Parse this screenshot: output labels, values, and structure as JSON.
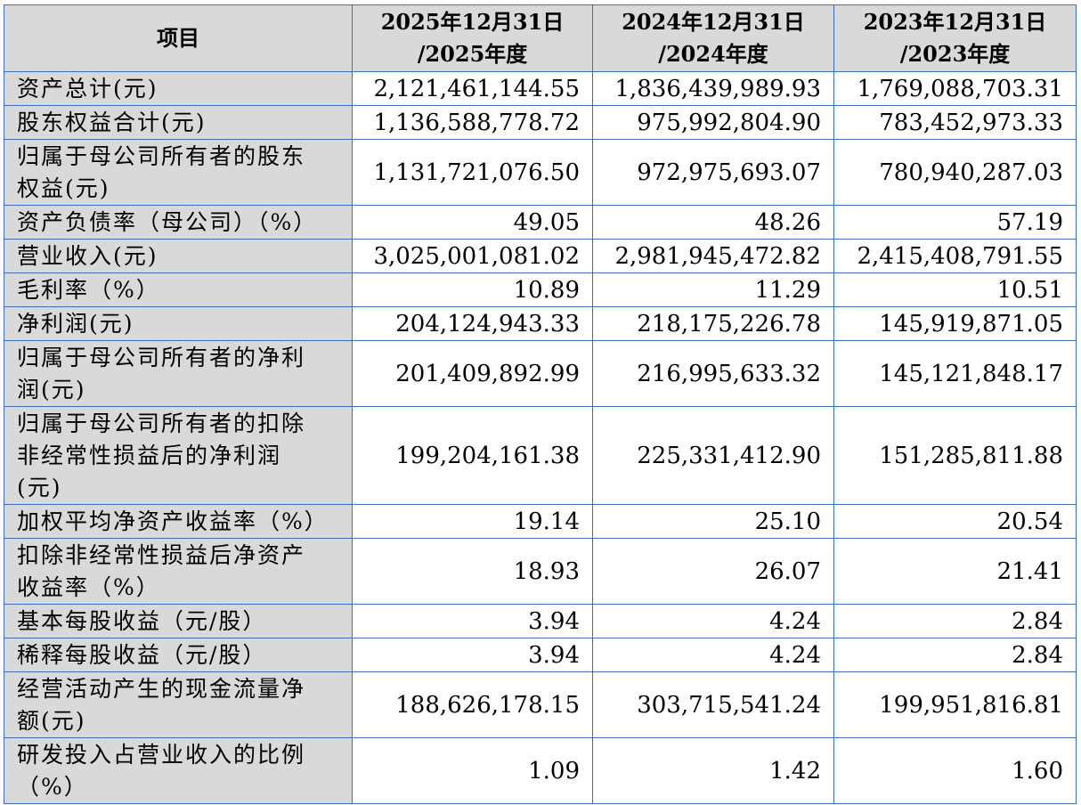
{
  "header": {
    "item_label": "项目",
    "columns": [
      {
        "line1": "2025年12月31日",
        "line2": "/2025年度"
      },
      {
        "line1": "2024年12月31日",
        "line2": "/2024年度"
      },
      {
        "line1": "2023年12月31日",
        "line2": "/2023年度"
      }
    ]
  },
  "rows": [
    {
      "label": [
        "资产总计(元)"
      ],
      "values": [
        "2,121,461,144.55",
        "1,836,439,989.93",
        "1,769,088,703.31"
      ]
    },
    {
      "label": [
        "股东权益合计(元)"
      ],
      "values": [
        "1,136,588,778.72",
        "975,992,804.90",
        "783,452,973.33"
      ]
    },
    {
      "label": [
        "归属于母公司所有者的股东",
        "权益(元)"
      ],
      "values": [
        "1,131,721,076.50",
        "972,975,693.07",
        "780,940,287.03"
      ]
    },
    {
      "label": [
        "资产负债率（母公司）（%）"
      ],
      "values": [
        "49.05",
        "48.26",
        "57.19"
      ]
    },
    {
      "label": [
        "营业收入(元)"
      ],
      "values": [
        "3,025,001,081.02",
        "2,981,945,472.82",
        "2,415,408,791.55"
      ]
    },
    {
      "label": [
        "毛利率（%）"
      ],
      "values": [
        "10.89",
        "11.29",
        "10.51"
      ]
    },
    {
      "label": [
        "净利润(元)"
      ],
      "values": [
        "204,124,943.33",
        "218,175,226.78",
        "145,919,871.05"
      ]
    },
    {
      "label": [
        "归属于母公司所有者的净利",
        "润(元)"
      ],
      "values": [
        "201,409,892.99",
        "216,995,633.32",
        "145,121,848.17"
      ]
    },
    {
      "label": [
        "归属于母公司所有者的扣除",
        "非经常性损益后的净利润",
        "(元)"
      ],
      "values": [
        "199,204,161.38",
        "225,331,412.90",
        "151,285,811.88"
      ]
    },
    {
      "label": [
        "加权平均净资产收益率（%）"
      ],
      "values": [
        "19.14",
        "25.10",
        "20.54"
      ]
    },
    {
      "label": [
        "扣除非经常性损益后净资产",
        "收益率（%）"
      ],
      "values": [
        "18.93",
        "26.07",
        "21.41"
      ]
    },
    {
      "label": [
        "基本每股收益（元/股）"
      ],
      "values": [
        "3.94",
        "4.24",
        "2.84"
      ]
    },
    {
      "label": [
        "稀释每股收益（元/股）"
      ],
      "values": [
        "3.94",
        "4.24",
        "2.84"
      ]
    },
    {
      "label": [
        "经营活动产生的现金流量净",
        "额(元)"
      ],
      "values": [
        "188,626,178.15",
        "303,715,541.24",
        "199,951,816.81"
      ]
    },
    {
      "label": [
        "研发投入占营业收入的比例",
        "（%）"
      ],
      "values": [
        "1.09",
        "1.42",
        "1.60"
      ]
    }
  ]
}
